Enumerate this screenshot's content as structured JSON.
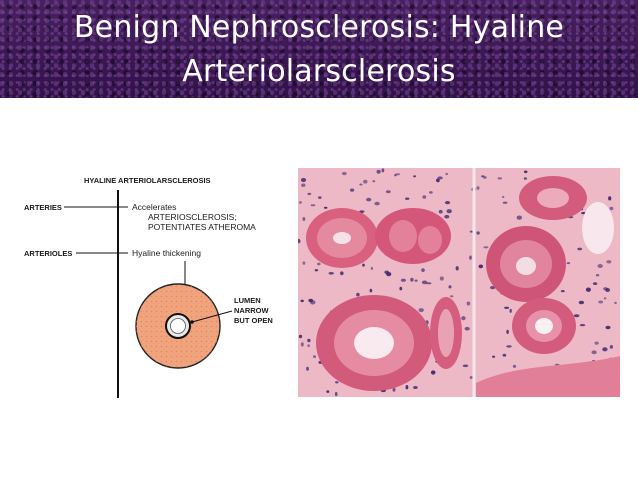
{
  "slide": {
    "title_line1": "Benign Nephrosclerosis: Hyaline",
    "title_line2": "Arteriolarsclerosis"
  },
  "diagram": {
    "heading": "HYALINE ARTERIOLARSCLEROSIS",
    "arteries_label": "ARTERIES",
    "arteries_note_1": "Accelerates",
    "arteries_note_2": "ARTERIOSCLEROSIS;",
    "arteries_note_3": "POTENTIATES ATHEROMA",
    "arterioles_label": "ARTERIOLES",
    "arterioles_note": "Hyaline thickening",
    "lumen_note_1": "LUMEN",
    "lumen_note_2": "NARROW",
    "lumen_note_3": "BUT OPEN",
    "wall_color": "#f1a57f",
    "wall_dot_color": "#e07f52"
  },
  "micrograph": {
    "stroma_color": "#eeb9c6",
    "vessel_color": "#d9607f",
    "nuclei_color": "#3e2a6e"
  }
}
